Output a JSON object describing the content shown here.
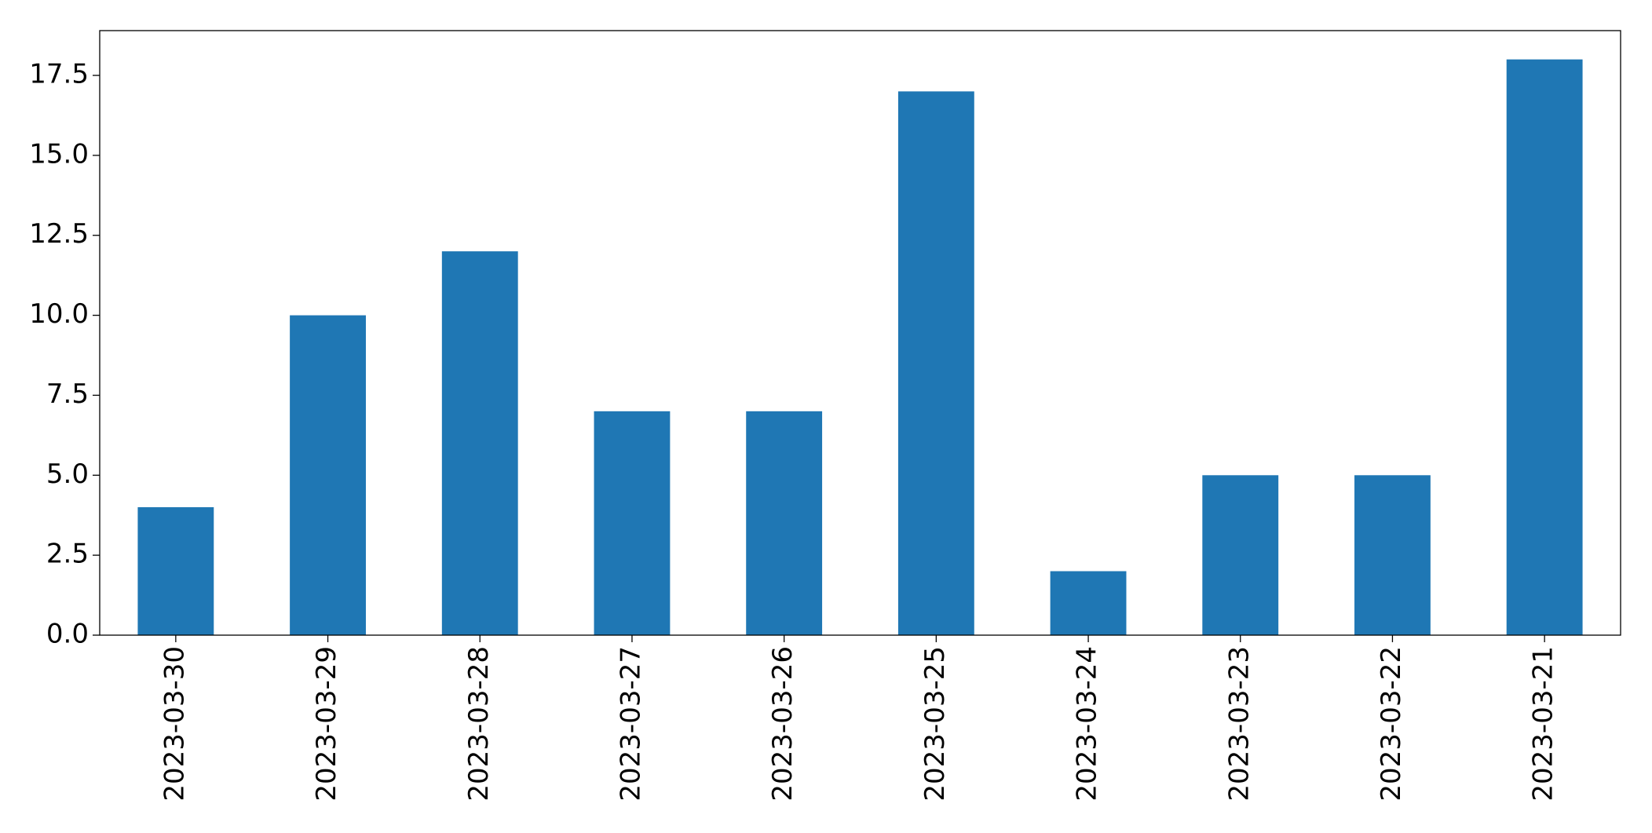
{
  "chart_data": {
    "type": "bar",
    "categories": [
      "2023-03-30",
      "2023-03-29",
      "2023-03-28",
      "2023-03-27",
      "2023-03-26",
      "2023-03-25",
      "2023-03-24",
      "2023-03-23",
      "2023-03-22",
      "2023-03-21"
    ],
    "values": [
      4,
      10,
      12,
      7,
      7,
      17,
      2,
      5,
      5,
      18
    ],
    "color": "#1f77b4",
    "ylim": [
      0,
      18.9
    ],
    "yticks": [
      {
        "value": 0,
        "label": "0.0"
      },
      2.5,
      {
        "value": 5,
        "label": "5.0"
      },
      7.5,
      {
        "value": 10,
        "label": "10.0"
      },
      12.5,
      {
        "value": 15,
        "label": "15.0"
      },
      17.5
    ],
    "grid": false
  }
}
